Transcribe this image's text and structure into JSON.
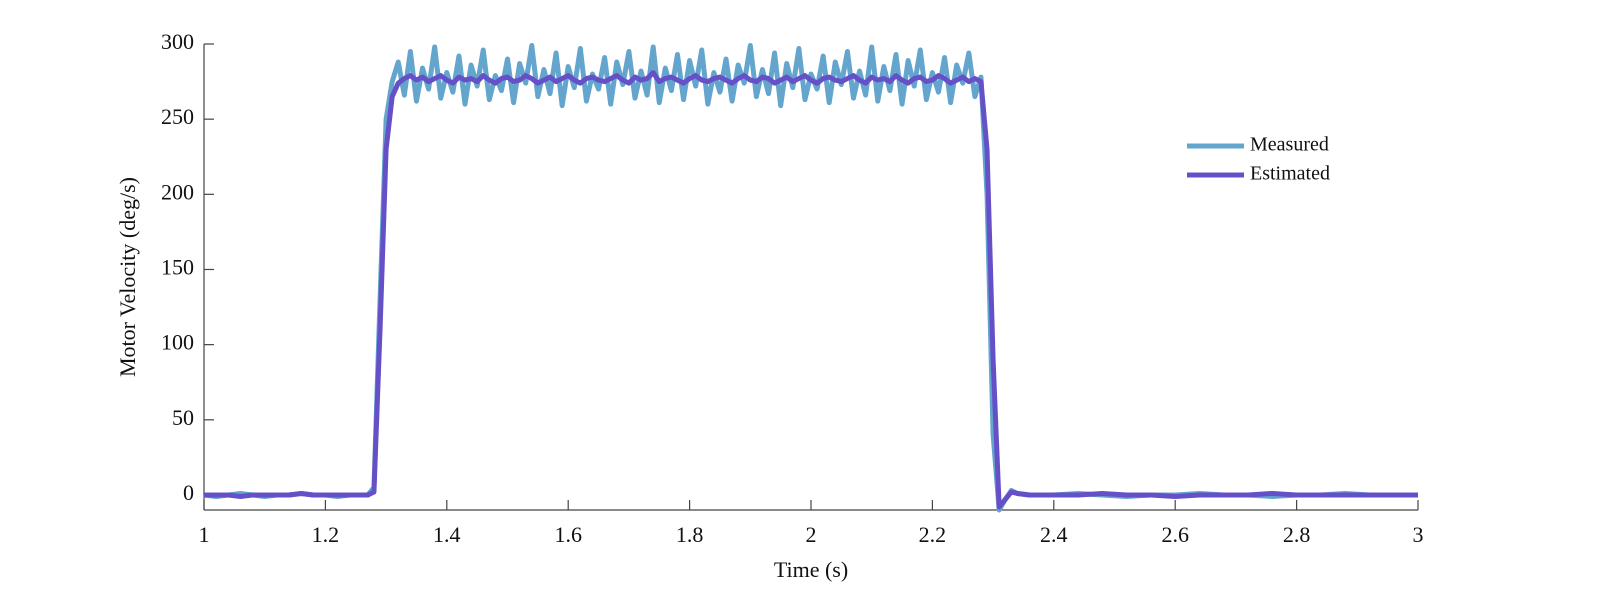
{
  "chart_data": {
    "type": "line",
    "xlabel": "Time (s)",
    "ylabel": "Motor Velocity (deg/s)",
    "x": [
      1,
      1.02,
      1.04,
      1.06,
      1.08,
      1.1,
      1.12,
      1.14,
      1.16,
      1.18,
      1.2,
      1.22,
      1.24,
      1.26,
      1.27,
      1.28,
      1.29,
      1.3,
      1.31,
      1.32,
      1.33,
      1.34,
      1.35,
      1.36,
      1.37,
      1.38,
      1.39,
      1.4,
      1.41,
      1.42,
      1.43,
      1.44,
      1.45,
      1.46,
      1.47,
      1.48,
      1.49,
      1.5,
      1.51,
      1.52,
      1.53,
      1.54,
      1.55,
      1.56,
      1.57,
      1.58,
      1.59,
      1.6,
      1.61,
      1.62,
      1.63,
      1.64,
      1.65,
      1.66,
      1.67,
      1.68,
      1.69,
      1.7,
      1.71,
      1.72,
      1.73,
      1.74,
      1.75,
      1.76,
      1.77,
      1.78,
      1.79,
      1.8,
      1.81,
      1.82,
      1.83,
      1.84,
      1.85,
      1.86,
      1.87,
      1.88,
      1.89,
      1.9,
      1.91,
      1.92,
      1.93,
      1.94,
      1.95,
      1.96,
      1.97,
      1.98,
      1.99,
      2,
      2.01,
      2.02,
      2.03,
      2.04,
      2.05,
      2.06,
      2.07,
      2.08,
      2.09,
      2.1,
      2.11,
      2.12,
      2.13,
      2.14,
      2.15,
      2.16,
      2.17,
      2.18,
      2.19,
      2.2,
      2.21,
      2.22,
      2.23,
      2.24,
      2.25,
      2.26,
      2.27,
      2.28,
      2.29,
      2.3,
      2.31,
      2.32,
      2.33,
      2.34,
      2.36,
      2.4,
      2.44,
      2.48,
      2.52,
      2.56,
      2.6,
      2.64,
      2.68,
      2.72,
      2.76,
      2.8,
      2.84,
      2.88,
      2.92,
      2.96,
      3
    ],
    "series": [
      {
        "name": "Measured",
        "color": "#64a5cd",
        "width": 5,
        "values": [
          0,
          -1,
          0,
          1,
          0,
          -1,
          0,
          0,
          1,
          0,
          0,
          -1,
          0,
          0,
          0,
          5,
          130,
          250,
          275,
          288,
          266,
          295,
          262,
          284,
          270,
          298,
          264,
          281,
          268,
          292,
          260,
          286,
          272,
          296,
          263,
          279,
          269,
          290,
          261,
          287,
          274,
          299,
          265,
          283,
          267,
          294,
          259,
          285,
          271,
          297,
          262,
          280,
          270,
          291,
          260,
          288,
          273,
          295,
          264,
          282,
          266,
          298,
          261,
          284,
          269,
          293,
          263,
          289,
          272,
          296,
          260,
          281,
          268,
          290,
          262,
          286,
          274,
          299,
          265,
          283,
          267,
          294,
          259,
          287,
          271,
          297,
          263,
          280,
          270,
          292,
          261,
          288,
          273,
          295,
          264,
          282,
          266,
          298,
          262,
          285,
          269,
          293,
          260,
          289,
          272,
          296,
          263,
          281,
          268,
          291,
          261,
          286,
          274,
          294,
          265,
          278,
          200,
          40,
          -10,
          -3,
          3,
          1,
          0,
          0,
          1,
          0,
          -1,
          0,
          0,
          1,
          0,
          0,
          -1,
          0,
          0,
          1,
          0,
          0,
          0
        ]
      },
      {
        "name": "Estimated",
        "color": "#6650c8",
        "width": 5,
        "values": [
          0,
          0,
          0,
          -1,
          0,
          0,
          0,
          0,
          1,
          0,
          0,
          0,
          0,
          0,
          0,
          2,
          110,
          230,
          265,
          274,
          277,
          279,
          276,
          278,
          275,
          277,
          279,
          276,
          274,
          278,
          276,
          277,
          275,
          279,
          276,
          274,
          277,
          278,
          275,
          276,
          279,
          277,
          274,
          276,
          278,
          275,
          277,
          279,
          276,
          274,
          277,
          278,
          276,
          275,
          277,
          279,
          276,
          274,
          278,
          276,
          277,
          281,
          275,
          277,
          278,
          276,
          274,
          277,
          279,
          276,
          275,
          277,
          278,
          276,
          274,
          277,
          279,
          276,
          275,
          278,
          277,
          274,
          276,
          278,
          275,
          277,
          279,
          276,
          274,
          277,
          278,
          276,
          275,
          277,
          279,
          276,
          274,
          278,
          276,
          277,
          275,
          279,
          276,
          274,
          277,
          278,
          275,
          276,
          279,
          277,
          274,
          276,
          278,
          275,
          277,
          275,
          230,
          90,
          -8,
          -3,
          2,
          1,
          0,
          0,
          0,
          1,
          0,
          0,
          -1,
          0,
          0,
          0,
          1,
          0,
          0,
          0,
          0,
          0,
          0
        ]
      }
    ],
    "xlim": [
      1,
      3
    ],
    "xticks": [
      1,
      1.2,
      1.4,
      1.6,
      1.8,
      2,
      2.2,
      2.4,
      2.6,
      2.8,
      3
    ],
    "ylim": [
      -10,
      300
    ],
    "yticks": [
      0,
      50,
      100,
      150,
      200,
      250,
      300
    ],
    "grid": false,
    "legend": "right"
  }
}
